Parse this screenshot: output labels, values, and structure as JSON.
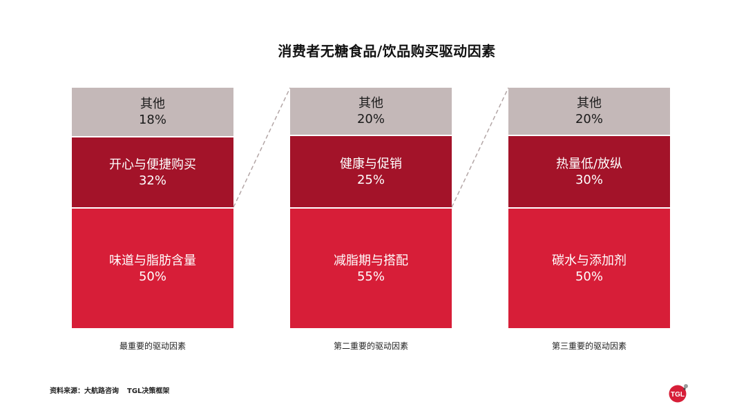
{
  "title": "消费者无糖食品/饮品购买驱动因素",
  "chart_data": {
    "type": "stacked-bar",
    "title": "消费者无糖食品/饮品购买驱动因素",
    "columns": [
      {
        "caption": "最重要的驱动因素",
        "segments": [
          {
            "label": "其他",
            "value": 18,
            "display": "18%"
          },
          {
            "label": "开心与便捷购买",
            "value": 32,
            "display": "32%"
          },
          {
            "label": "味道与脂肪含量",
            "value": 50,
            "display": "50%"
          }
        ]
      },
      {
        "caption": "第二重要的驱动因素",
        "segments": [
          {
            "label": "其他",
            "value": 20,
            "display": "20%"
          },
          {
            "label": "健康与促销",
            "value": 25,
            "display": "25%"
          },
          {
            "label": "减脂期与搭配",
            "value": 55,
            "display": "55%"
          }
        ]
      },
      {
        "caption": "第三重要的驱动因素",
        "segments": [
          {
            "label": "其他",
            "value": 20,
            "display": "20%"
          },
          {
            "label": "热量低/放纵",
            "value": 30,
            "display": "30%"
          },
          {
            "label": "碳水与添加剂",
            "value": 50,
            "display": "50%"
          }
        ]
      }
    ]
  },
  "footer": {
    "source_label": "资料来源：",
    "source_name": "大航路咨询",
    "framework": "TGL决策框架"
  },
  "logo": {
    "text": "TGL",
    "color": "#d71e38"
  },
  "colors": {
    "other": "#c4b8b8",
    "mid": "#a31329",
    "bottom": "#d71e38",
    "connector": "#b3a6a6"
  }
}
